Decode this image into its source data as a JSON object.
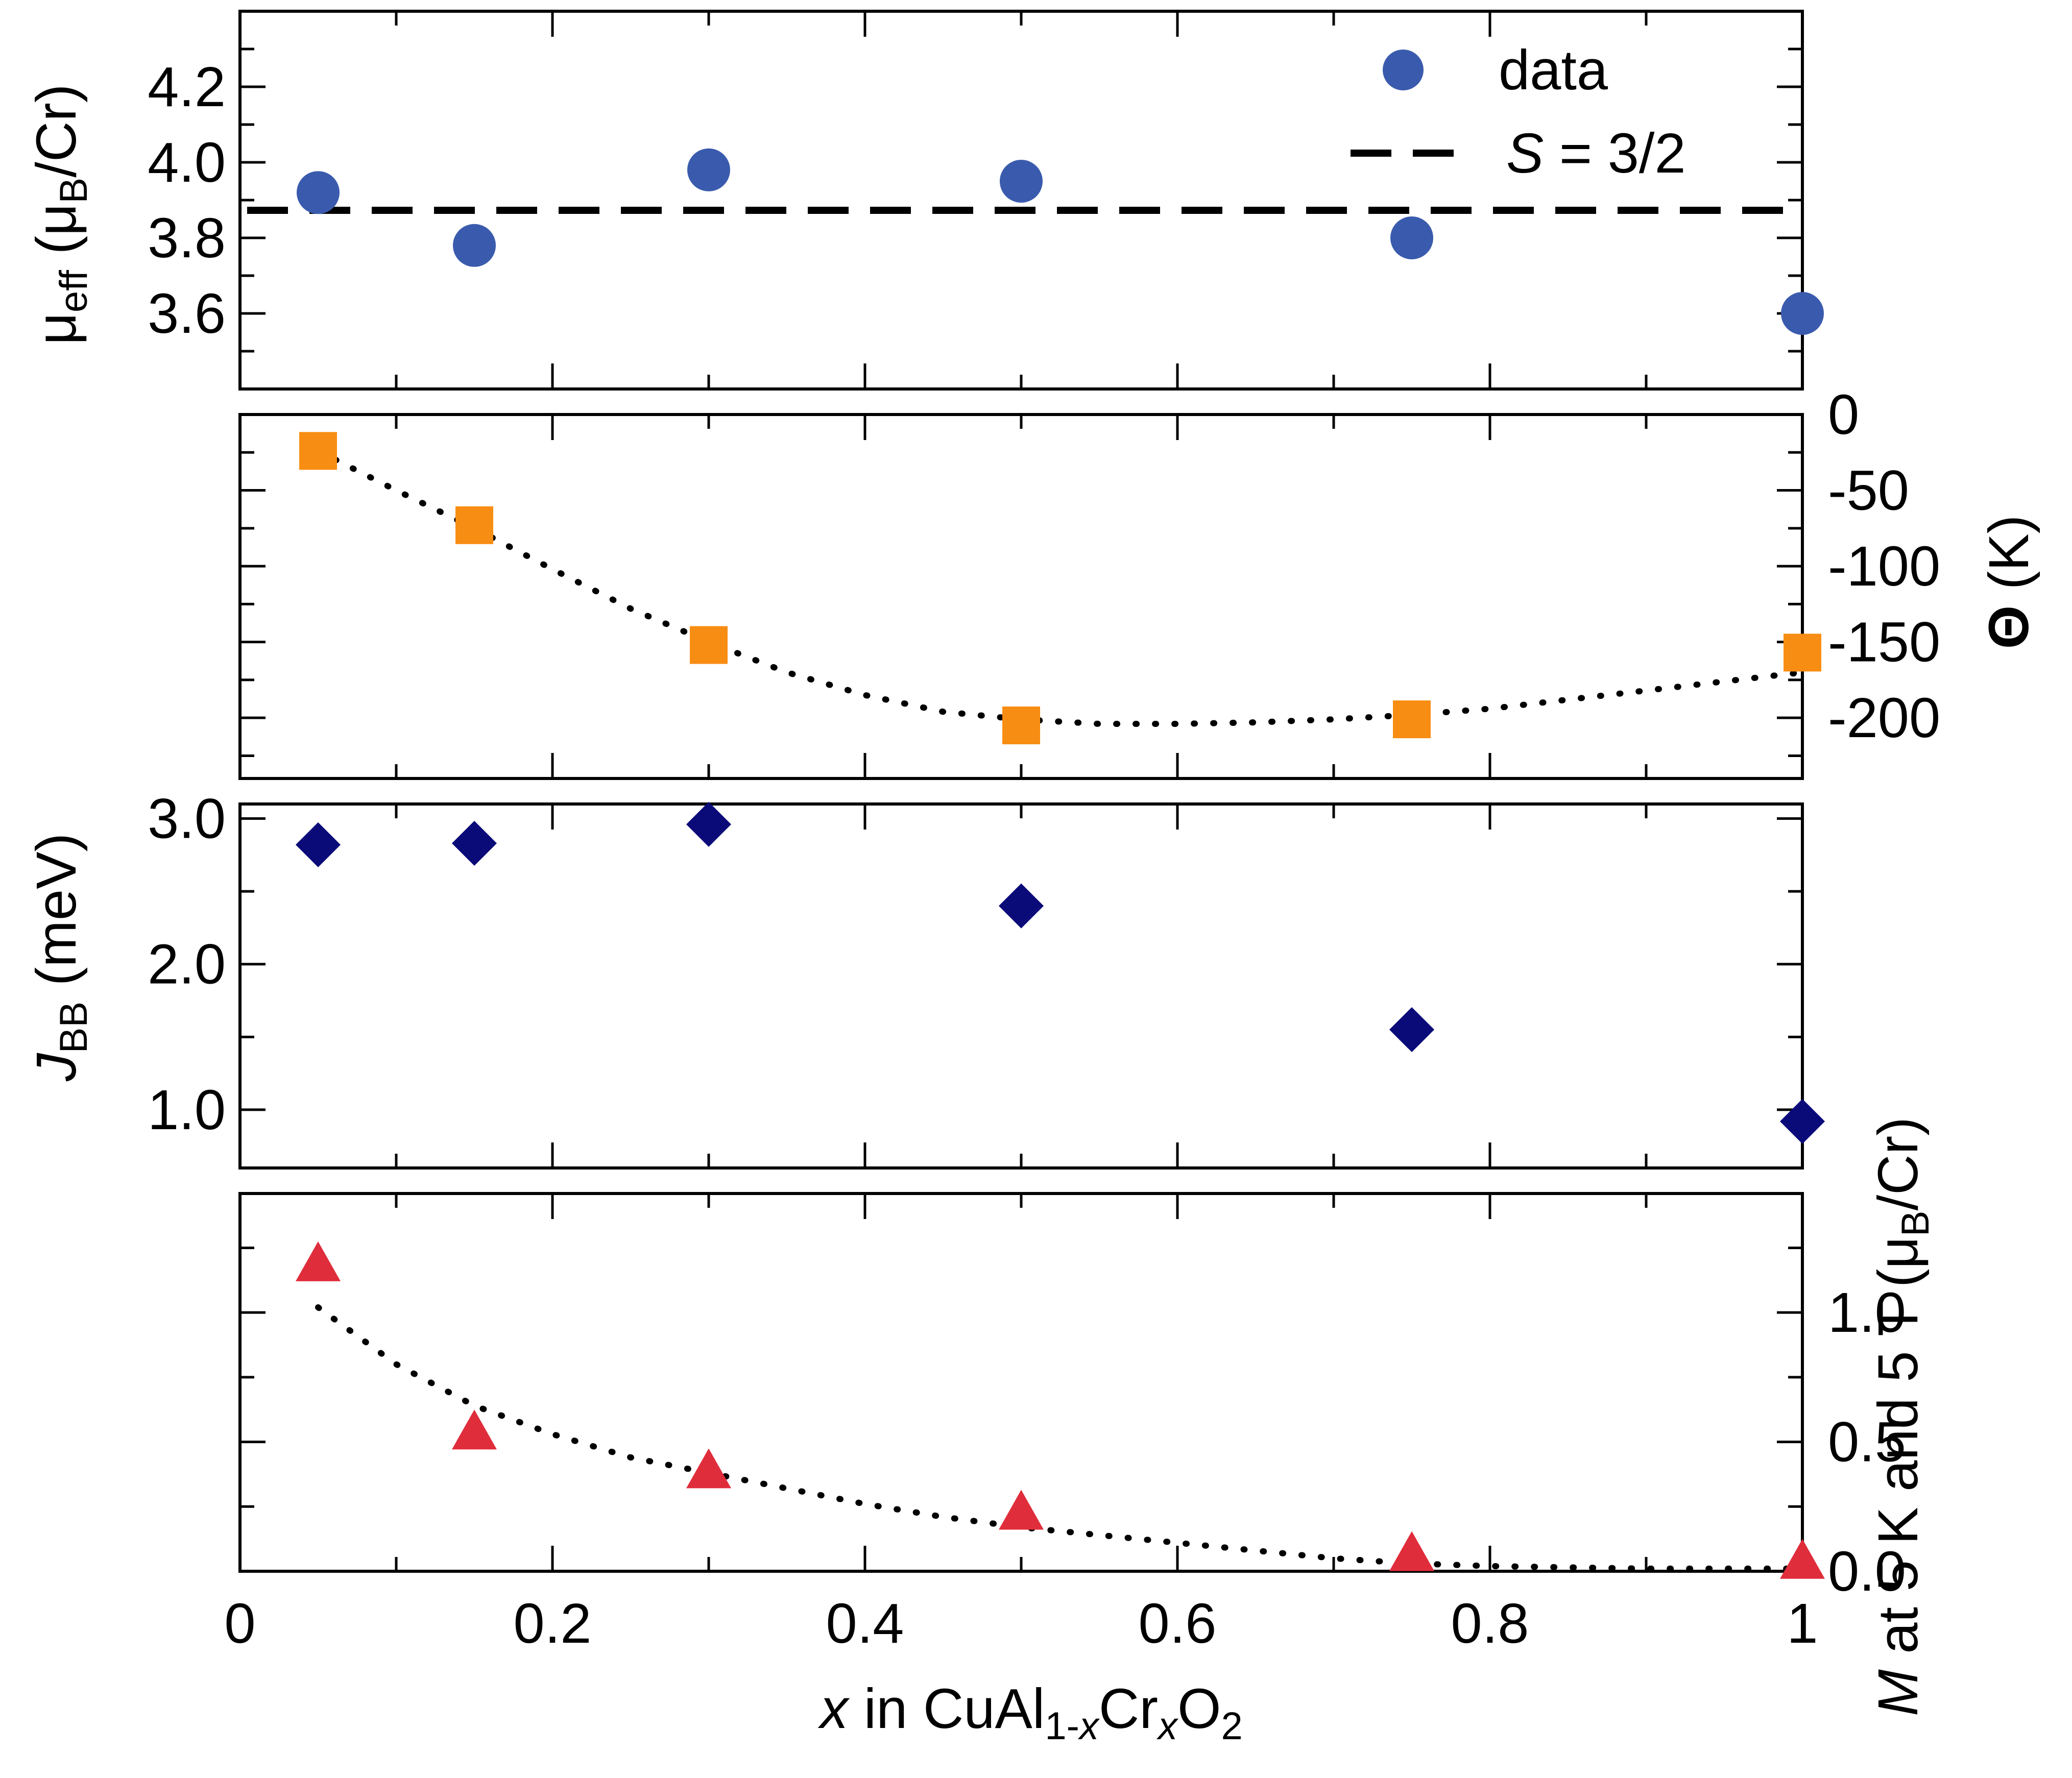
{
  "chart_data": [
    {
      "type": "scatter",
      "panel": "mu_eff",
      "ylabel": {
        "sym": "μ",
        "sub": "eff",
        "mid": " (μ",
        "sub2": "B",
        "tail": "/Cr)"
      },
      "y_axis_side": "left",
      "xlim": [
        0,
        1
      ],
      "ylim": [
        3.4,
        4.4
      ],
      "yticks": [
        3.6,
        3.8,
        4.0,
        4.2
      ],
      "ytick_labels": [
        "3.6",
        "3.8",
        "4.0",
        "4.2"
      ],
      "series": [
        {
          "name": "data",
          "marker": "circle",
          "color": "#3a5bad",
          "x": [
            0.05,
            0.15,
            0.3,
            0.5,
            0.75,
            1.0
          ],
          "y": [
            3.92,
            3.78,
            3.98,
            3.95,
            3.8,
            3.6
          ]
        }
      ],
      "reference_line": {
        "name": "S = 3/2",
        "y": 3.873,
        "style": "dashed"
      },
      "legend": {
        "position": "top-right",
        "entries": [
          {
            "label": "data"
          },
          {
            "label_sym": "S",
            "label_rest": " = 3/2"
          }
        ]
      }
    },
    {
      "type": "scatter",
      "panel": "theta",
      "ylabel": {
        "sym": "Θ",
        "tail": " (K)"
      },
      "y_axis_side": "right",
      "xlim": [
        0,
        1
      ],
      "ylim": [
        -240,
        0
      ],
      "yticks": [
        0,
        -50,
        -100,
        -150,
        -200
      ],
      "ytick_labels": [
        "0",
        "-50",
        "-100",
        "-150",
        "-200"
      ],
      "series": [
        {
          "marker": "square",
          "color": "#f88d13",
          "x": [
            0.05,
            0.15,
            0.3,
            0.5,
            0.75,
            1.0
          ],
          "y": [
            -24,
            -73,
            -152,
            -205,
            -201,
            -157
          ]
        }
      ],
      "fit_line": {
        "style": "dotted",
        "x": [
          0.05,
          0.1,
          0.15,
          0.2,
          0.25,
          0.3,
          0.35,
          0.4,
          0.45,
          0.5,
          0.55,
          0.6,
          0.65,
          0.7,
          0.75,
          0.8,
          0.85,
          0.9,
          0.95,
          1.0
        ],
        "y": [
          -24,
          -50,
          -75,
          -102,
          -128,
          -150,
          -170,
          -185,
          -196,
          -201,
          -204,
          -204,
          -203,
          -201,
          -198,
          -194,
          -188,
          -182,
          -176,
          -170
        ]
      }
    },
    {
      "type": "scatter",
      "panel": "J_BB",
      "ylabel": {
        "sym": "J",
        "sub": "BB",
        "tail": " (meV)"
      },
      "y_axis_side": "left",
      "xlim": [
        0,
        1
      ],
      "ylim": [
        0.6,
        3.1
      ],
      "yticks": [
        1.0,
        2.0,
        3.0
      ],
      "ytick_labels": [
        "1.0",
        "2.0",
        "3.0"
      ],
      "series": [
        {
          "marker": "diamond",
          "color": "#0a0a78",
          "x": [
            0.05,
            0.15,
            0.3,
            0.5,
            0.75,
            1.0
          ],
          "y": [
            2.82,
            2.83,
            2.96,
            2.4,
            1.55,
            0.92
          ]
        }
      ]
    },
    {
      "type": "scatter",
      "panel": "M",
      "ylabel": {
        "sym": "M",
        "tail": " at 5 K and 5 T (μ",
        "sub": "B",
        "tail2": "/Cr)"
      },
      "y_axis_side": "right",
      "xlim": [
        0,
        1
      ],
      "ylim": [
        0,
        1.46
      ],
      "yticks": [
        0,
        0.5,
        1.0
      ],
      "ytick_labels": [
        "0.0",
        "0.5",
        "1.0"
      ],
      "series": [
        {
          "marker": "triangle",
          "color": "#e02d3b",
          "x": [
            0.05,
            0.15,
            0.3,
            0.5,
            0.75,
            1.0
          ],
          "y": [
            1.18,
            0.53,
            0.38,
            0.22,
            0.06,
            0.03
          ]
        }
      ],
      "fit_line": {
        "style": "dotted",
        "x": [
          0.05,
          0.1,
          0.15,
          0.2,
          0.25,
          0.3,
          0.35,
          0.4,
          0.45,
          0.5,
          0.55,
          0.6,
          0.65,
          0.7,
          0.75,
          0.8,
          0.85,
          0.9,
          0.95,
          1.0
        ],
        "y": [
          1.02,
          0.8,
          0.64,
          0.53,
          0.44,
          0.38,
          0.32,
          0.26,
          0.21,
          0.17,
          0.14,
          0.11,
          0.08,
          0.05,
          0.03,
          0.02,
          0.015,
          0.01,
          0.01,
          0.01
        ]
      }
    }
  ],
  "x_axis": {
    "ticks": [
      0,
      0.2,
      0.4,
      0.6,
      0.8,
      1
    ],
    "tick_labels": [
      "0",
      "0.2",
      "0.4",
      "0.6",
      "0.8",
      "1"
    ],
    "label": {
      "sym": "x",
      "a": " in CuAl",
      "sub1": "1-",
      "sub1sym": "x",
      "b": "Cr",
      "sub2sym": "x",
      "c": "O",
      "sub3": "2"
    }
  }
}
